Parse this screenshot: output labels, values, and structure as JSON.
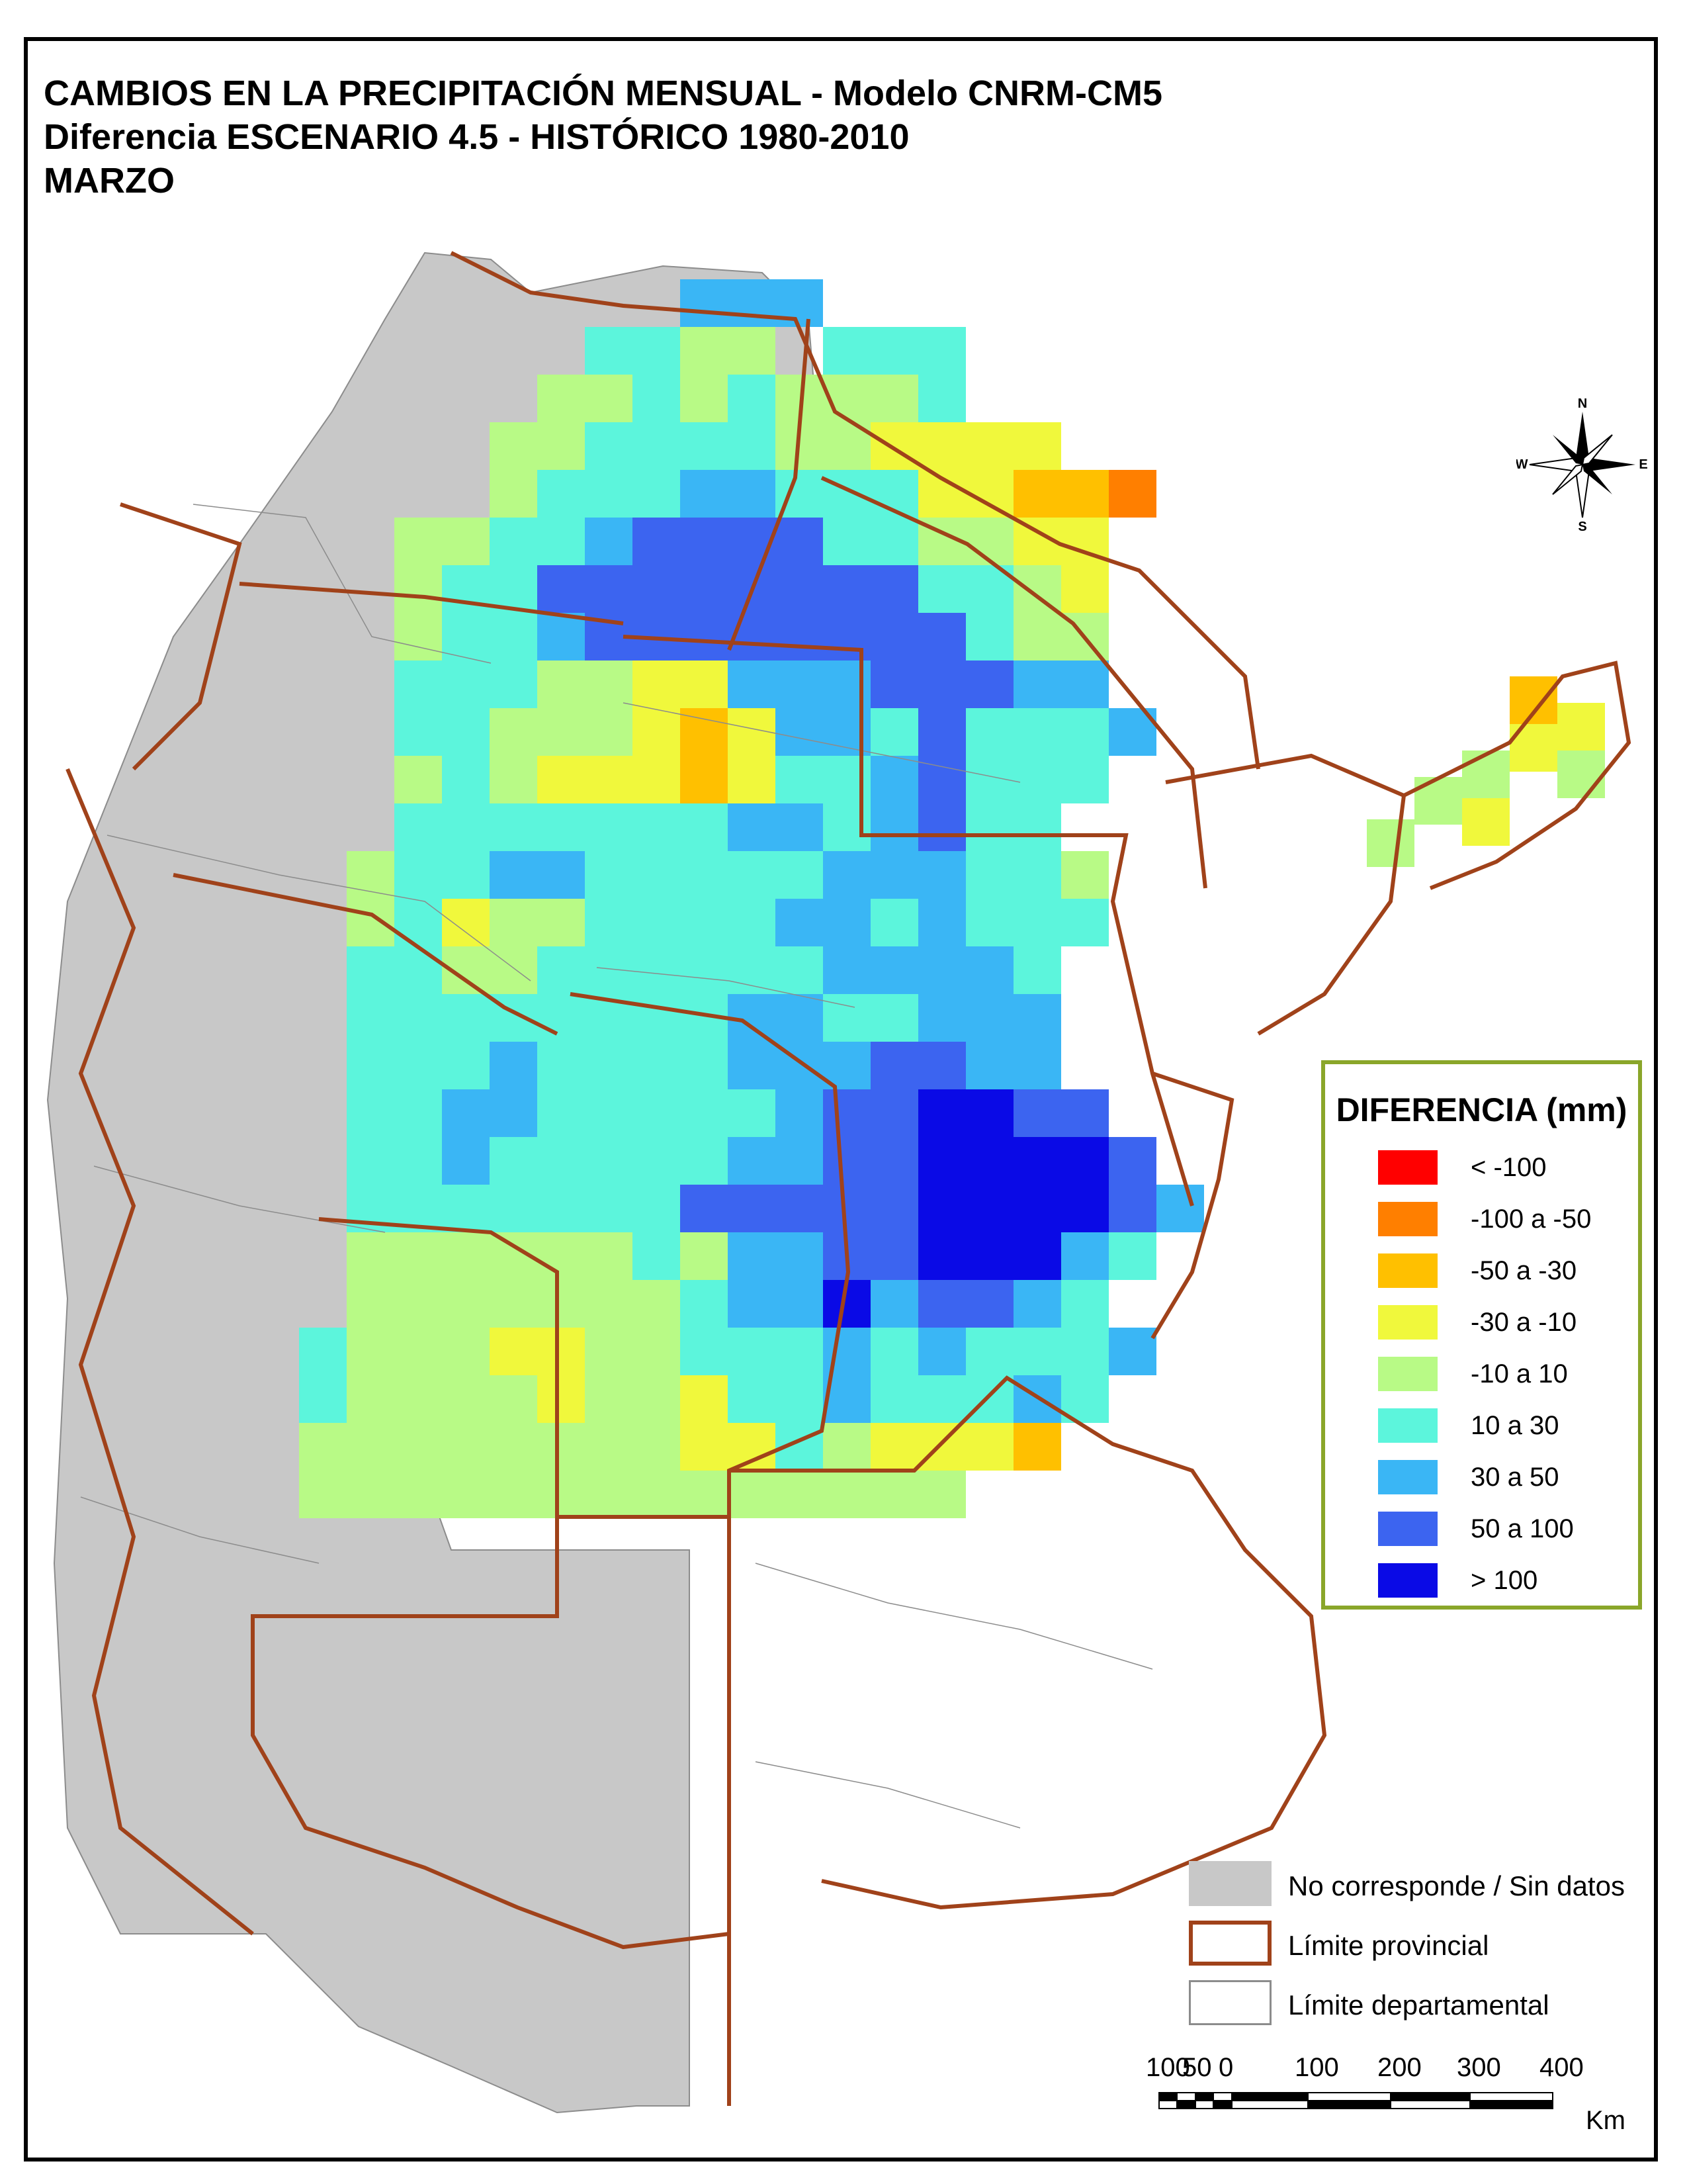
{
  "title": {
    "line1": "CAMBIOS EN LA PRECIPITACIÓN MENSUAL - Modelo CNRM-CM5",
    "line2": "Diferencia ESCENARIO 4.5 - HISTÓRICO 1980-2010",
    "line3": "MARZO"
  },
  "legend": {
    "title": "DIFERENCIA (mm)",
    "classes": [
      {
        "label": "< -100",
        "color": "#ff0000"
      },
      {
        "label": "-100 a -50",
        "color": "#ff7f00"
      },
      {
        "label": "-50 a -30",
        "color": "#ffc000"
      },
      {
        "label": "-30 a -10",
        "color": "#f0f83c"
      },
      {
        "label": "-10 a 10",
        "color": "#b8fa86"
      },
      {
        "label": "10 a 30",
        "color": "#5cf5dc"
      },
      {
        "label": "30 a 50",
        "color": "#3ab6f5"
      },
      {
        "label": "50 a 100",
        "color": "#3c64f0"
      },
      {
        "label": "> 100",
        "color": "#0a0ae6"
      }
    ]
  },
  "secondary_legend": {
    "no_data": {
      "label": "No corresponde / Sin datos",
      "color": "#c8c8c8"
    },
    "provincial": {
      "label": "Límite provincial",
      "color": "#a0421a"
    },
    "departmental": {
      "label": "Límite departamental",
      "color": "#8c8c8c"
    }
  },
  "scale_bar": {
    "labels": [
      "100",
      "50",
      "0",
      "100",
      "200",
      "300",
      "400"
    ],
    "unit": "Km"
  },
  "compass": {
    "n": "N",
    "s": "S",
    "e": "E",
    "w": "W"
  }
}
